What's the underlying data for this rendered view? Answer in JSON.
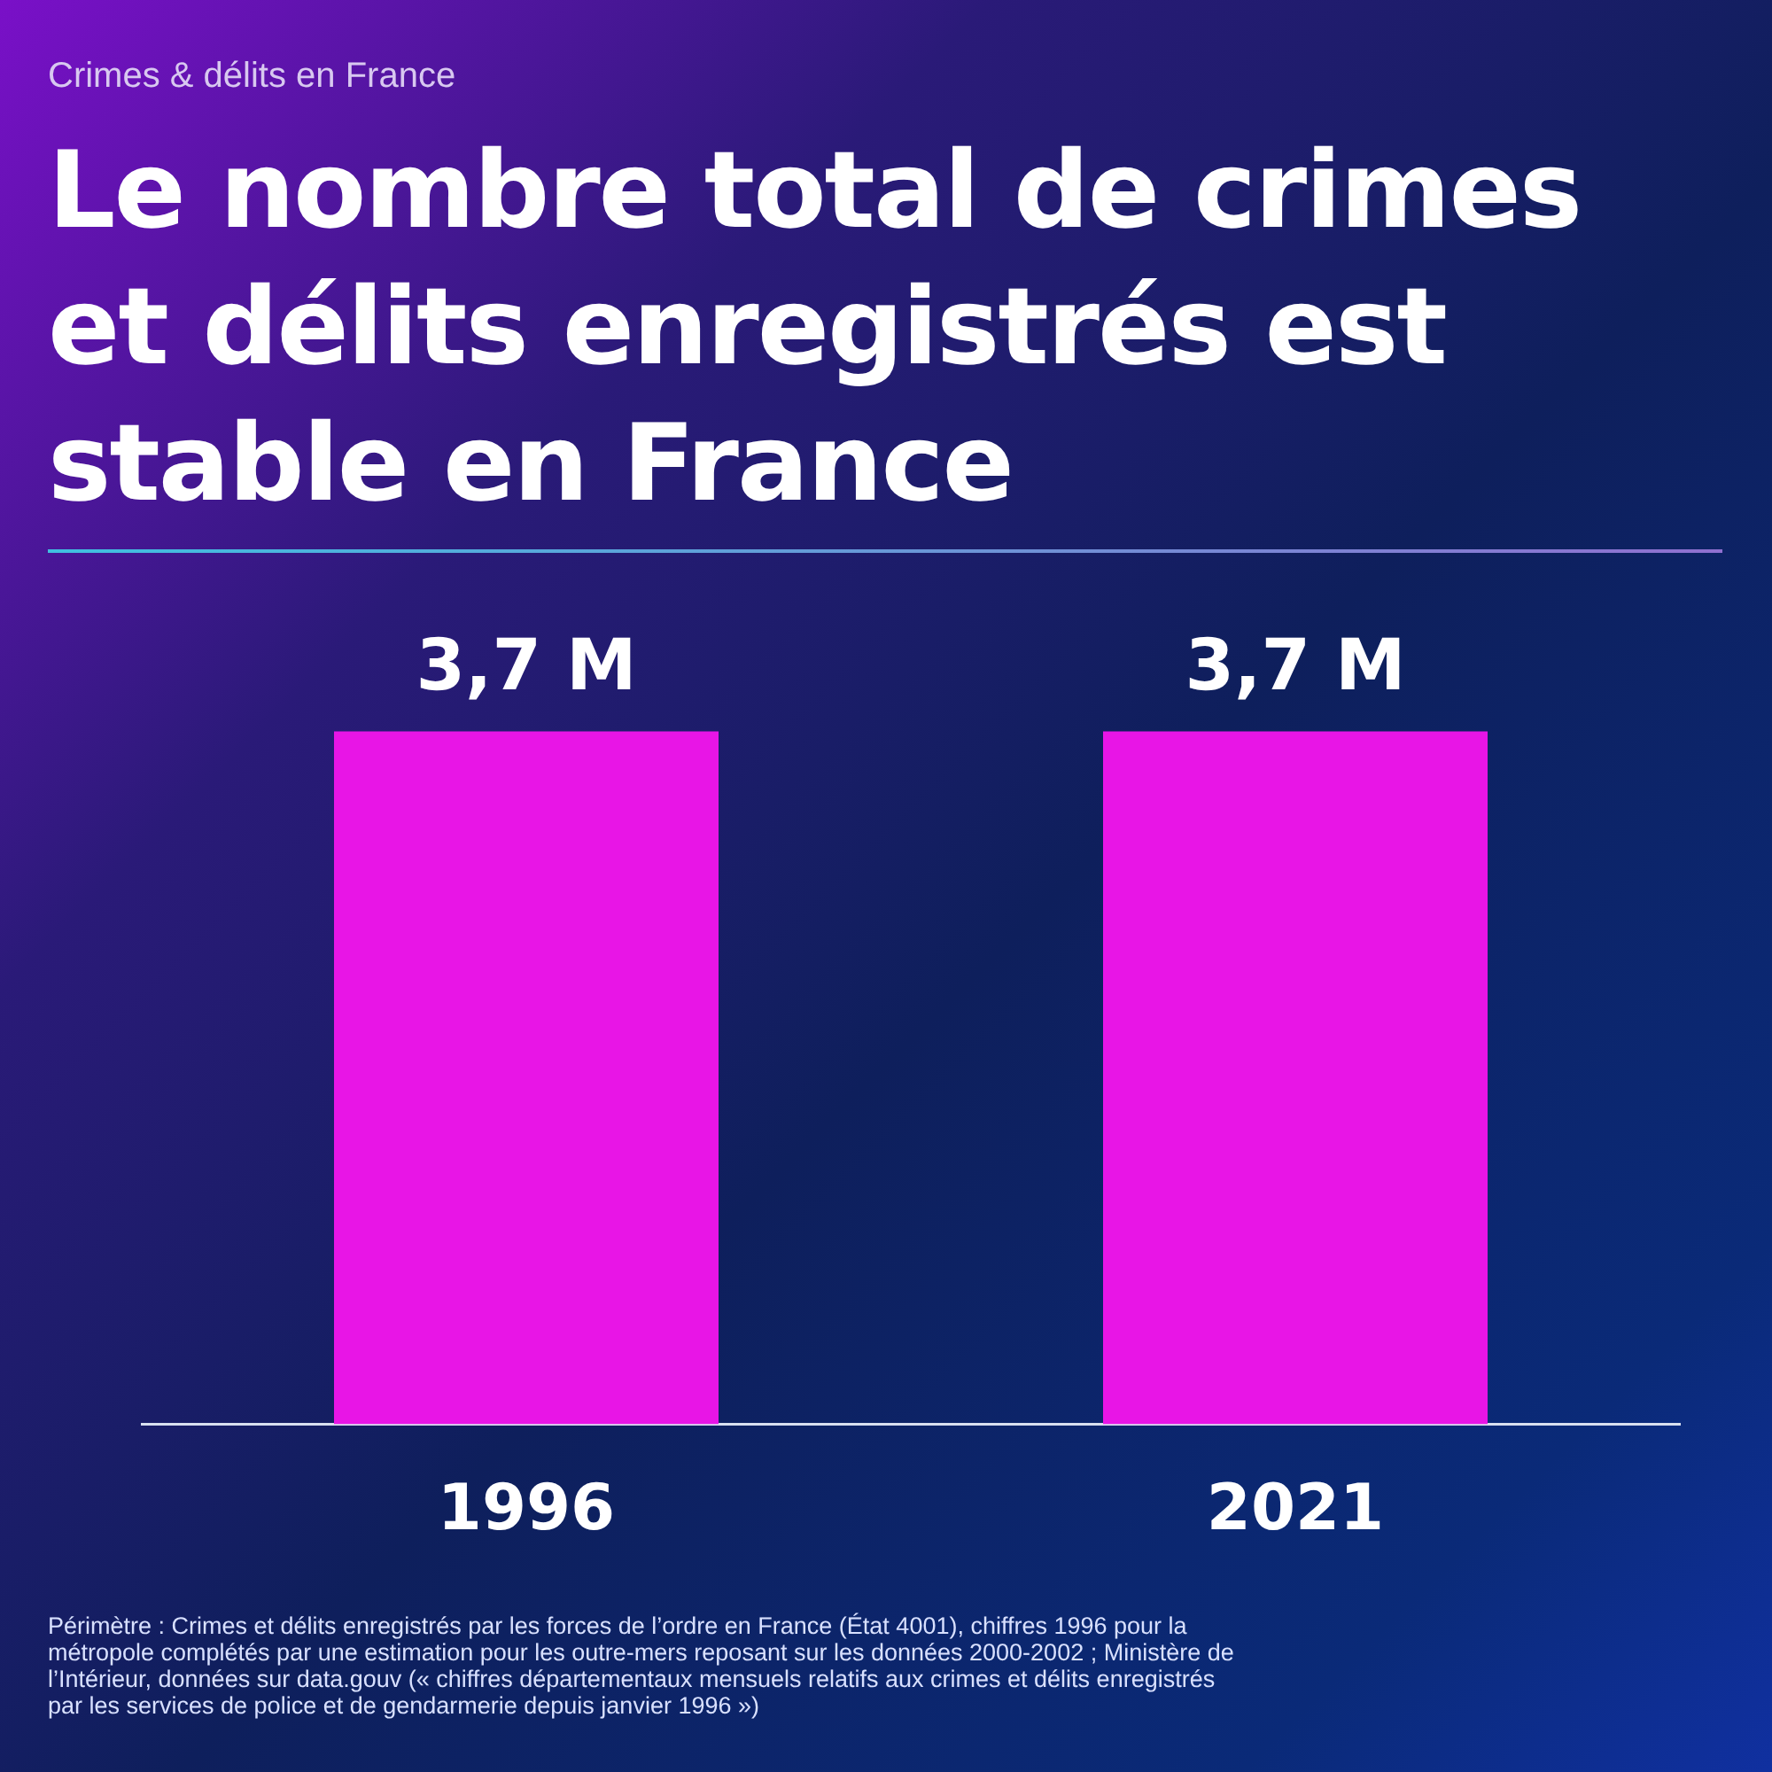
{
  "chart_data": {
    "type": "bar",
    "subtitle": "Crimes & délits en France",
    "title": "Le nombre total de crimes et délits enregistrés est stable en France",
    "categories": [
      "1996",
      "2021"
    ],
    "values": [
      3.7,
      3.7
    ],
    "value_labels": [
      "3,7 M",
      "3,7 M"
    ],
    "color": "#e815e6",
    "grid": false,
    "legend": false,
    "annotations": [
      "Périmètre : Crimes et délits enregistrés par les forces de l’ordre en France (État 4001), chiffres 1996 pour la métropole complétés par une estimation pour les outre-mers reposant sur les données 2000-2002 ; Ministère de l’Intérieur, données sur data.gouv (« chiffres départementaux mensuels relatifs aux crimes et délits enregistrés par les services de police et de gendarmerie depuis janvier 1996 »)"
    ]
  }
}
